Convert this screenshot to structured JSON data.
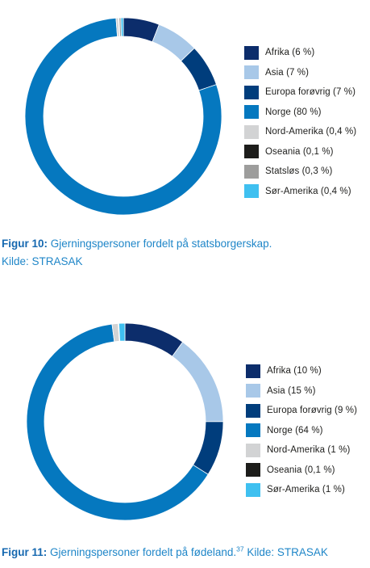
{
  "chart_data": [
    {
      "type": "pie",
      "donut": true,
      "caption_label": "Figur 10:",
      "caption_text": " Gjerningspersoner fordelt på statsborgerskap.",
      "caption_line2": "Kilde: STRASAK",
      "slices": [
        {
          "label": "Afrika (6 %)",
          "value": 6,
          "color": "#0c2d6b"
        },
        {
          "label": "Asia (7 %)",
          "value": 7,
          "color": "#a8c8e8"
        },
        {
          "label": "Europa forøvrig (7 %)",
          "value": 7,
          "color": "#003d7c"
        },
        {
          "label": "Norge (80 %)",
          "value": 80,
          "color": "#0578bf"
        },
        {
          "label": "Nord-Amerika (0,4 %)",
          "value": 0.4,
          "color": "#d2d3d4"
        },
        {
          "label": "Oseania (0,1 %)",
          "value": 0.1,
          "color": "#1d1d1b"
        },
        {
          "label": "Statsløs (0,3 %)",
          "value": 0.3,
          "color": "#9d9d9c"
        },
        {
          "label": "Sør-Amerika (0,4 %)",
          "value": 0.4,
          "color": "#3fc0f0"
        }
      ]
    },
    {
      "type": "pie",
      "donut": true,
      "caption_label": "Figur 11:",
      "caption_text": " Gjerningspersoner fordelt på fødeland.",
      "caption_sup": "37",
      "caption_tail": " Kilde: STRASAK",
      "slices": [
        {
          "label": "Afrika (10 %)",
          "value": 10,
          "color": "#0c2d6b"
        },
        {
          "label": "Asia (15 %)",
          "value": 15,
          "color": "#a8c8e8"
        },
        {
          "label": "Europa forøvrig (9 %)",
          "value": 9,
          "color": "#003d7c"
        },
        {
          "label": "Norge (64 %)",
          "value": 64,
          "color": "#0578bf"
        },
        {
          "label": "Nord-Amerika (1 %)",
          "value": 1,
          "color": "#d2d3d4"
        },
        {
          "label": "Oseania (0,1 %)",
          "value": 0.1,
          "color": "#1d1d1b"
        },
        {
          "label": "Sør-Amerika (1 %)",
          "value": 1,
          "color": "#3fc0f0"
        }
      ]
    }
  ]
}
